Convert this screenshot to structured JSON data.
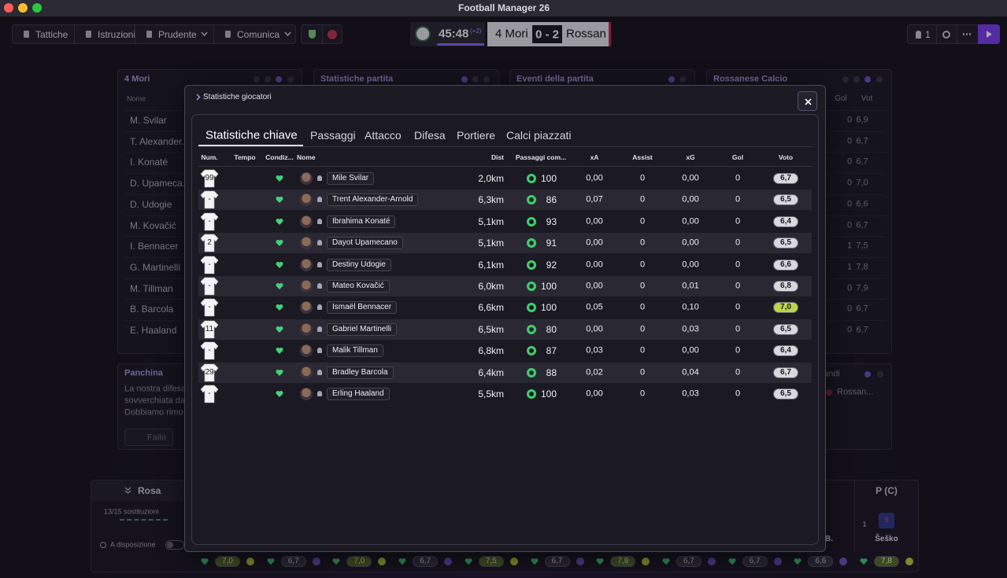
{
  "window": {
    "title": "Football Manager 26"
  },
  "toolbar": {
    "left_buttons": [
      "Tattiche",
      "Istruzioni",
      "Prudente",
      "Comunica"
    ],
    "clock": "45:48",
    "added_time": "(+2)",
    "home_team": "4 Mori",
    "score": "0 - 2",
    "away_team": "Rossan",
    "staff_count": "1"
  },
  "panels": {
    "home": {
      "title": "4 Mori",
      "column": "Nome",
      "players": [
        "M. Svilar",
        "T. Alexander...",
        "I. Konaté",
        "D. Upameca...",
        "D. Udogie",
        "M. Kovačić",
        "I. Bennacer",
        "G. Martinelli",
        "M. Tillman",
        "B. Barcola",
        "E. Haaland"
      ]
    },
    "stats": {
      "title": "Statistiche partita"
    },
    "events": {
      "title": "Eventi della partita"
    },
    "away": {
      "title": "Rossanese Calcio",
      "columns": [
        "Gol",
        "Vot"
      ],
      "rows": [
        [
          "0",
          "6,9"
        ],
        [
          "0",
          "6,7"
        ],
        [
          "0",
          "6,7"
        ],
        [
          "0",
          "7,0"
        ],
        [
          "0",
          "6,6"
        ],
        [
          "0",
          "6,7"
        ],
        [
          "1",
          "7,5"
        ],
        [
          "1",
          "7,8"
        ],
        [
          "0",
          "7,9"
        ],
        [
          "0",
          "6,7"
        ],
        [
          "0",
          "6,7"
        ]
      ]
    },
    "bench": {
      "title": "Panchina",
      "lines": [
        "La nostra difesa",
        "sovverchiata dag",
        "Dobbiamo rimo"
      ],
      "button": "Fallo"
    },
    "away_lower": {
      "title": "andi",
      "item": "Rossan..."
    }
  },
  "squad": {
    "title": "Rosa",
    "substitutions": "13/15 sostituzioni",
    "toggle": "A disposizione",
    "ratings": [
      "7,0",
      "6,7",
      "7,0",
      "6,7",
      "7,5",
      "6,7",
      "7,9",
      "6,7",
      "6,7",
      "6,6",
      "7,8"
    ],
    "position": "P (C)",
    "player": "Šeško",
    "other_player": "B.",
    "shirt": "9",
    "count": "1"
  },
  "modal": {
    "breadcrumb": "Statistiche giocatori",
    "tabs": [
      "Statistiche chiave",
      "Passaggi",
      "Attacco",
      "Difesa",
      "Portiere",
      "Calci piazzati"
    ],
    "table": {
      "columns": [
        "Num.",
        "Tempo",
        "Condiz...",
        "Nome",
        "Dist",
        "Passaggi com...",
        "xA",
        "Assist",
        "xG",
        "Gol",
        "Voto"
      ],
      "rows": [
        [
          "99",
          "Mile Svilar",
          "2,0km",
          "100",
          "0,00",
          "0",
          "0,00",
          "0",
          "6,7"
        ],
        [
          "-",
          "Trent Alexander-Arnold",
          "6,3km",
          "86",
          "0,07",
          "0",
          "0,00",
          "0",
          "6,5"
        ],
        [
          "-",
          "Ibrahima Konaté",
          "5,1km",
          "93",
          "0,00",
          "0",
          "0,00",
          "0",
          "6,4"
        ],
        [
          "2",
          "Dayot Upamecano",
          "5,1km",
          "91",
          "0,00",
          "0",
          "0,00",
          "0",
          "6,5"
        ],
        [
          "-",
          "Destiny Udogie",
          "6,1km",
          "92",
          "0,00",
          "0",
          "0,00",
          "0",
          "6,6"
        ],
        [
          "-",
          "Mateo Kovačić",
          "6,0km",
          "100",
          "0,00",
          "0",
          "0,01",
          "0",
          "6,8"
        ],
        [
          "-",
          "Ismaël Bennacer",
          "6,6km",
          "100",
          "0,05",
          "0",
          "0,10",
          "0",
          "7,0"
        ],
        [
          "11",
          "Gabriel Martinelli",
          "6,5km",
          "80",
          "0,00",
          "0",
          "0,03",
          "0",
          "6,5"
        ],
        [
          "-",
          "Malik Tillman",
          "6,8km",
          "87",
          "0,03",
          "0",
          "0,00",
          "0",
          "6,4"
        ],
        [
          "29",
          "Bradley Barcola",
          "6,4km",
          "88",
          "0,02",
          "0",
          "0,04",
          "0",
          "6,7"
        ],
        [
          "-",
          "Erling Haaland",
          "5,5km",
          "100",
          "0,00",
          "0",
          "0,03",
          "0",
          "6,5"
        ]
      ]
    }
  }
}
